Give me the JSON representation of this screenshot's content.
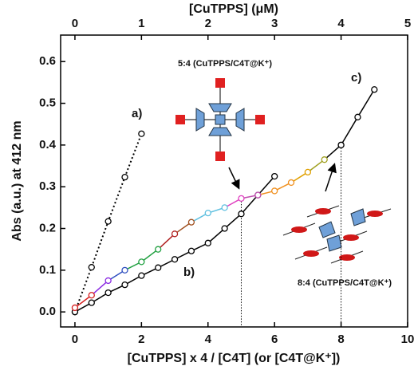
{
  "chart_data": {
    "type": "line",
    "x_label": "[CuTPPS] x 4 / [C4T] (or [C4T@K⁺])",
    "y_label": "Abs (a.u.) at 412 nm",
    "x2_label": "[CuTPPS] (μM)",
    "xlim": [
      -0.43,
      10
    ],
    "xticks": [
      0,
      2,
      4,
      6,
      8,
      10
    ],
    "x2lim": [
      -0.215,
      5
    ],
    "x2ticks": [
      0,
      1,
      2,
      3,
      4,
      5
    ],
    "ylim": [
      -0.036,
      0.6635
    ],
    "yticks": [
      {
        "value": 0,
        "label": "0.0"
      },
      0.1,
      0.2,
      0.3,
      0.4,
      0.5,
      0.6
    ],
    "series": [
      {
        "style": "dotted",
        "color": "#000000",
        "x": [
          0,
          0.5,
          1,
          1.5,
          2
        ],
        "values": [
          0,
          0.107,
          0.217,
          0.323,
          0.427
        ]
      },
      {
        "style": "solid",
        "color": "#000000",
        "x": [
          0,
          0.5,
          1,
          1.5,
          2,
          2.5,
          3,
          3.5,
          4,
          4.5,
          5,
          5.5,
          6
        ],
        "values": [
          0,
          0.022,
          0.046,
          0.065,
          0.087,
          0.106,
          0.126,
          0.146,
          0.165,
          0.2,
          0.235,
          0.28,
          0.325
        ]
      },
      {
        "style": "solid",
        "colors": [
          "#d62020",
          "#d62020",
          "#8a2be2",
          "#3050c0",
          "#20a040",
          "#20a040",
          "#b02020",
          "#a05020",
          "#60c0e0",
          "#60c0e0",
          "#e040c0",
          "#c050b0",
          "#f09020",
          "#f09020",
          "#e0a000",
          "#a0a020",
          "#000000"
        ],
        "x": [
          0,
          0.5,
          1,
          1.5,
          2,
          2.5,
          3,
          3.5,
          4,
          4.5,
          5,
          5.5,
          6,
          6.5,
          7,
          7.5,
          8
        ],
        "values": [
          0.01,
          0.04,
          0.075,
          0.1,
          0.12,
          0.15,
          0.187,
          0.215,
          0.237,
          0.25,
          0.272,
          0.28,
          0.29,
          0.31,
          0.335,
          0.365,
          0.4
        ]
      },
      {
        "style": "solid",
        "color": "#000000",
        "x": [
          8,
          8.5,
          9
        ],
        "values": [
          0.4,
          0.467,
          0.533
        ]
      }
    ],
    "annotations": [
      "a)",
      "b)",
      "c)",
      "5:4 (CuTPPS/C4T@K⁺)",
      "8:4 (CuTPPS/C4T@K⁺)"
    ]
  }
}
